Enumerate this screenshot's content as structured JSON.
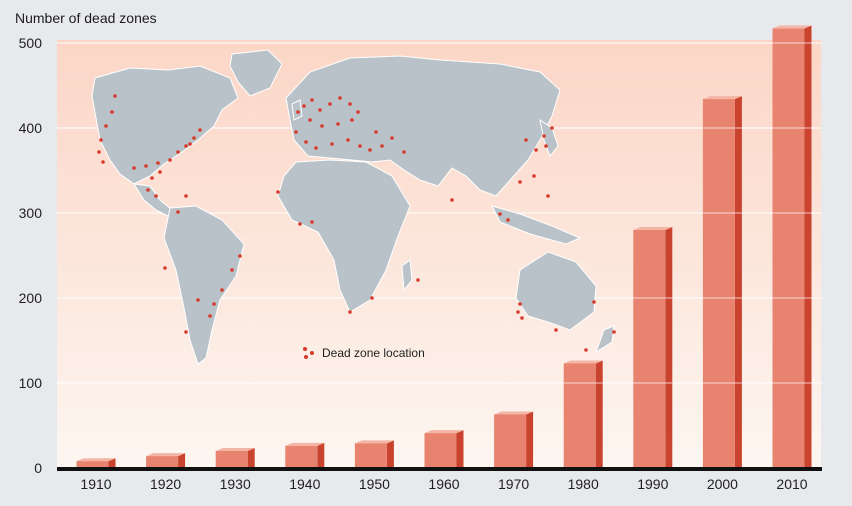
{
  "chart_data": {
    "type": "bar",
    "ylabel": "Number of dead zones",
    "categories": [
      "1910",
      "1920",
      "1930",
      "1940",
      "1950",
      "1960",
      "1970",
      "1980",
      "1990",
      "2000",
      "2010"
    ],
    "values": [
      8,
      14,
      20,
      26,
      29,
      41,
      63,
      123,
      280,
      434,
      517
    ],
    "ylim": [
      0,
      500
    ],
    "yticks": [
      0,
      100,
      200,
      300,
      400,
      500
    ],
    "grid": true,
    "bar_color": "#e8836f",
    "bar_side_color": "#c9432f",
    "bar_top_color": "#f3b5a5",
    "background_gradient": [
      "#fbd6c6",
      "#fdf6f1"
    ],
    "legend": {
      "label": "Dead zone location",
      "marker_color": "#d7392b",
      "placement": "center-left"
    },
    "inset": "world map with dead zone location markers"
  }
}
